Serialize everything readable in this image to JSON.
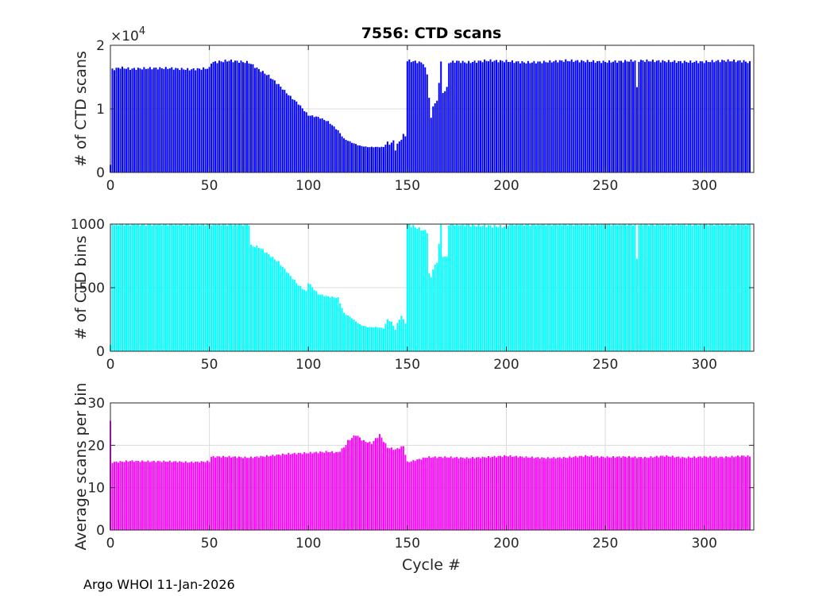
{
  "figure_title": "7556: CTD scans",
  "footer": "Argo WHOI 11-Jan-2026",
  "xlabel": "Cycle #",
  "chart_data": [
    {
      "type": "bar",
      "title": "7556: CTD scans",
      "ylabel": "# of CTD scans",
      "multiplier": "×10",
      "multiplier_exp": "4",
      "color": "#0000ff",
      "xlim": [
        0,
        325
      ],
      "ylim": [
        0,
        20000
      ],
      "xticks": [
        0,
        50,
        100,
        150,
        200,
        250,
        300
      ],
      "yticks": [
        0,
        10000,
        20000
      ],
      "ytick_labels": [
        "0",
        "1",
        "2"
      ],
      "anchors": [
        [
          0,
          1200
        ],
        [
          1,
          16200
        ],
        [
          5,
          16500
        ],
        [
          10,
          16300
        ],
        [
          20,
          16400
        ],
        [
          30,
          16400
        ],
        [
          40,
          16200
        ],
        [
          50,
          16400
        ],
        [
          51,
          17300
        ],
        [
          60,
          17600
        ],
        [
          70,
          17300
        ],
        [
          74,
          16400
        ],
        [
          80,
          15200
        ],
        [
          85,
          13800
        ],
        [
          90,
          12200
        ],
        [
          95,
          10800
        ],
        [
          100,
          9000
        ],
        [
          105,
          8700
        ],
        [
          110,
          8000
        ],
        [
          115,
          6600
        ],
        [
          118,
          5300
        ],
        [
          122,
          4700
        ],
        [
          126,
          4200
        ],
        [
          130,
          4000
        ],
        [
          135,
          4000
        ],
        [
          138,
          4000
        ],
        [
          140,
          4800
        ],
        [
          141,
          4400
        ],
        [
          143,
          5000
        ],
        [
          144,
          3500
        ],
        [
          145,
          4500
        ],
        [
          147,
          5200
        ],
        [
          148,
          6000
        ],
        [
          149,
          5700
        ],
        [
          150,
          17600
        ],
        [
          155,
          17400
        ],
        [
          158,
          17200
        ],
        [
          160,
          15500
        ],
        [
          161,
          11800
        ],
        [
          162,
          8500
        ],
        [
          163,
          10500
        ],
        [
          165,
          11200
        ],
        [
          167,
          17300
        ],
        [
          168,
          12500
        ],
        [
          170,
          13300
        ],
        [
          171,
          17300
        ],
        [
          175,
          17500
        ],
        [
          180,
          17300
        ],
        [
          190,
          17600
        ],
        [
          200,
          17500
        ],
        [
          210,
          17300
        ],
        [
          220,
          17400
        ],
        [
          230,
          17600
        ],
        [
          240,
          17500
        ],
        [
          250,
          17400
        ],
        [
          260,
          17500
        ],
        [
          265,
          17600
        ],
        [
          266,
          13300
        ],
        [
          267,
          17600
        ],
        [
          280,
          17500
        ],
        [
          290,
          17400
        ],
        [
          300,
          17400
        ],
        [
          310,
          17600
        ],
        [
          320,
          17500
        ],
        [
          323,
          17300
        ]
      ]
    },
    {
      "type": "bar",
      "ylabel": "# of CTD bins",
      "color": "#00ffff",
      "xlim": [
        0,
        325
      ],
      "ylim": [
        0,
        1000
      ],
      "xticks": [
        0,
        50,
        100,
        150,
        200,
        250,
        300
      ],
      "yticks": [
        0,
        500,
        1000
      ],
      "ytick_labels": [
        "0",
        "500",
        "1000"
      ],
      "anchors": [
        [
          0,
          50
        ],
        [
          1,
          1000
        ],
        [
          70,
          1000
        ],
        [
          71,
          830
        ],
        [
          75,
          820
        ],
        [
          80,
          760
        ],
        [
          85,
          700
        ],
        [
          90,
          610
        ],
        [
          95,
          520
        ],
        [
          99,
          470
        ],
        [
          100,
          540
        ],
        [
          105,
          450
        ],
        [
          110,
          430
        ],
        [
          115,
          420
        ],
        [
          118,
          300
        ],
        [
          122,
          260
        ],
        [
          126,
          210
        ],
        [
          130,
          190
        ],
        [
          135,
          190
        ],
        [
          138,
          180
        ],
        [
          140,
          250
        ],
        [
          142,
          230
        ],
        [
          144,
          170
        ],
        [
          145,
          220
        ],
        [
          147,
          280
        ],
        [
          148,
          250
        ],
        [
          149,
          220
        ],
        [
          150,
          1000
        ],
        [
          160,
          940
        ],
        [
          161,
          610
        ],
        [
          162,
          580
        ],
        [
          163,
          650
        ],
        [
          165,
          700
        ],
        [
          167,
          1000
        ],
        [
          168,
          750
        ],
        [
          170,
          740
        ],
        [
          171,
          1000
        ],
        [
          200,
          980
        ],
        [
          201,
          1000
        ],
        [
          265,
          1000
        ],
        [
          266,
          730
        ],
        [
          267,
          1000
        ],
        [
          323,
          1000
        ]
      ]
    },
    {
      "type": "bar",
      "ylabel": "Average scans per bin",
      "color": "#ff00ff",
      "xlim": [
        0,
        325
      ],
      "ylim": [
        0,
        30
      ],
      "xticks": [
        0,
        50,
        100,
        150,
        200,
        250,
        300
      ],
      "yticks": [
        0,
        10,
        20,
        30
      ],
      "ytick_labels": [
        "0",
        "10",
        "20",
        "30"
      ],
      "anchors": [
        [
          0,
          25.5
        ],
        [
          1,
          16
        ],
        [
          10,
          16.3
        ],
        [
          20,
          16.2
        ],
        [
          30,
          16.2
        ],
        [
          40,
          16
        ],
        [
          50,
          16.2
        ],
        [
          51,
          17.3
        ],
        [
          60,
          17.3
        ],
        [
          70,
          17.1
        ],
        [
          80,
          17.5
        ],
        [
          90,
          18
        ],
        [
          100,
          18.2
        ],
        [
          110,
          18.5
        ],
        [
          115,
          18.3
        ],
        [
          118,
          19.5
        ],
        [
          120,
          21
        ],
        [
          124,
          22.5
        ],
        [
          128,
          21
        ],
        [
          132,
          20.5
        ],
        [
          136,
          22.5
        ],
        [
          140,
          19.5
        ],
        [
          144,
          19
        ],
        [
          148,
          19.8
        ],
        [
          150,
          16
        ],
        [
          160,
          17.2
        ],
        [
          170,
          17.2
        ],
        [
          180,
          17
        ],
        [
          190,
          17.2
        ],
        [
          200,
          17.5
        ],
        [
          210,
          17.2
        ],
        [
          220,
          17
        ],
        [
          230,
          17.1
        ],
        [
          240,
          17.5
        ],
        [
          250,
          17.2
        ],
        [
          260,
          17.3
        ],
        [
          270,
          17.1
        ],
        [
          280,
          17.5
        ],
        [
          290,
          17.1
        ],
        [
          300,
          17.3
        ],
        [
          310,
          17.2
        ],
        [
          320,
          17.5
        ],
        [
          323,
          17.4
        ]
      ]
    }
  ]
}
